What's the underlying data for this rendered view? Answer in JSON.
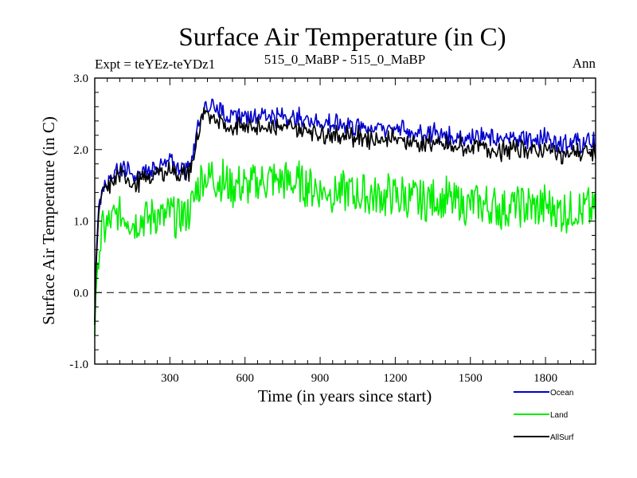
{
  "chart_data": {
    "type": "line",
    "title": "Surface Air Temperature (in C)",
    "subtitle_left": "Expt = teYEz-teYDz1",
    "subtitle_center": "515_0_MaBP - 515_0_MaBP",
    "subtitle_right": "Ann",
    "xlabel": "Time (in years since start)",
    "ylabel": "Surface Air Temperature (in C)",
    "xlim": [
      0,
      2000
    ],
    "ylim": [
      -1.0,
      3.0
    ],
    "xticks": [
      300,
      600,
      900,
      1200,
      1500,
      1800
    ],
    "xtick_labels": [
      "300",
      "600",
      "900",
      "1200",
      "1500",
      "1800"
    ],
    "yticks": [
      -1.0,
      0.0,
      1.0,
      2.0,
      3.0
    ],
    "ytick_labels": [
      "-1.0",
      "0.0",
      "1.0",
      "2.0",
      "3.0"
    ],
    "reference_line": {
      "y": 0.0,
      "style": "dashed"
    },
    "legend_position": "bottom-right",
    "series": [
      {
        "name": "Ocean",
        "color": "#0000cc",
        "x": [
          0,
          5,
          15,
          30,
          50,
          80,
          120,
          160,
          200,
          240,
          280,
          320,
          360,
          390,
          410,
          430,
          450,
          500,
          550,
          600,
          700,
          800,
          900,
          1000,
          1100,
          1200,
          1300,
          1400,
          1500,
          1600,
          1700,
          1800,
          1900,
          2000
        ],
        "values": [
          -0.4,
          0.5,
          1.2,
          1.5,
          1.55,
          1.7,
          1.75,
          1.6,
          1.7,
          1.75,
          1.8,
          1.78,
          1.75,
          1.85,
          2.35,
          2.55,
          2.65,
          2.6,
          2.45,
          2.5,
          2.45,
          2.45,
          2.4,
          2.35,
          2.3,
          2.3,
          2.25,
          2.2,
          2.2,
          2.15,
          2.15,
          2.15,
          2.1,
          2.1
        ],
        "noise": 0.1
      },
      {
        "name": "Land",
        "color": "#00ee00",
        "x": [
          0,
          5,
          15,
          30,
          50,
          80,
          120,
          160,
          200,
          240,
          280,
          320,
          360,
          390,
          410,
          430,
          450,
          500,
          550,
          600,
          700,
          800,
          900,
          1000,
          1100,
          1200,
          1300,
          1400,
          1500,
          1600,
          1700,
          1800,
          1900,
          2000
        ],
        "values": [
          -0.6,
          0.1,
          0.6,
          0.85,
          0.95,
          1.05,
          1.1,
          1.0,
          1.05,
          1.1,
          1.05,
          1.05,
          1.1,
          1.2,
          1.5,
          1.6,
          1.65,
          1.6,
          1.5,
          1.5,
          1.55,
          1.55,
          1.45,
          1.4,
          1.35,
          1.35,
          1.3,
          1.3,
          1.25,
          1.2,
          1.2,
          1.2,
          1.15,
          1.15
        ],
        "noise": 0.28
      },
      {
        "name": "AllSurf",
        "color": "#000000",
        "x": [
          0,
          5,
          15,
          30,
          50,
          80,
          120,
          160,
          200,
          240,
          280,
          320,
          360,
          390,
          410,
          430,
          450,
          500,
          550,
          600,
          700,
          800,
          900,
          1000,
          1100,
          1200,
          1300,
          1400,
          1500,
          1600,
          1700,
          1800,
          1900,
          2000
        ],
        "values": [
          -0.45,
          0.4,
          1.1,
          1.4,
          1.45,
          1.6,
          1.65,
          1.5,
          1.6,
          1.65,
          1.7,
          1.68,
          1.65,
          1.75,
          2.2,
          2.42,
          2.5,
          2.45,
          2.3,
          2.35,
          2.3,
          2.3,
          2.25,
          2.2,
          2.15,
          2.15,
          2.1,
          2.05,
          2.05,
          2.0,
          2.0,
          2.0,
          1.95,
          1.95
        ],
        "noise": 0.1
      }
    ]
  }
}
